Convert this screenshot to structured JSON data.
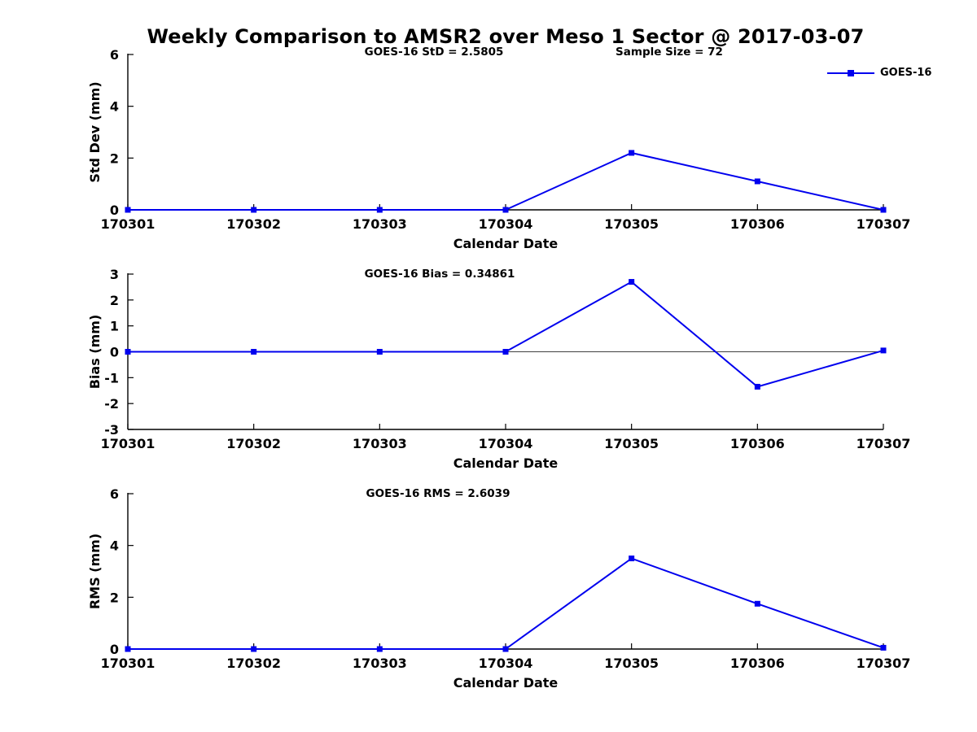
{
  "figure": {
    "title": "Weekly Comparison to AMSR2 over Meso 1 Sector @ 2017-03-07",
    "legend": {
      "label": "GOES-16",
      "color": "#0000ee"
    }
  },
  "chart_data": [
    {
      "type": "line",
      "title": "GOES-16 StD = 2.5805",
      "annotation": "Sample Size = 72",
      "xlabel": "Calendar Date",
      "ylabel": "Std Dev (mm)",
      "categories": [
        "170301",
        "170302",
        "170303",
        "170304",
        "170305",
        "170306",
        "170307"
      ],
      "series": [
        {
          "name": "GOES-16",
          "color": "#0000ee",
          "marker": "square",
          "values": [
            0,
            0,
            0,
            0,
            2.2,
            1.1,
            0
          ]
        }
      ],
      "ylim": [
        0,
        6
      ],
      "yticks": [
        0,
        2,
        4,
        6
      ],
      "zero_line": false,
      "grid": false,
      "legend_position": "northeast-outside"
    },
    {
      "type": "line",
      "title": "GOES-16 Bias  = 0.34861",
      "annotation": "",
      "xlabel": "Calendar Date",
      "ylabel": "Bias (mm)",
      "categories": [
        "170301",
        "170302",
        "170303",
        "170304",
        "170305",
        "170306",
        "170307"
      ],
      "series": [
        {
          "name": "GOES-16",
          "color": "#0000ee",
          "marker": "square",
          "values": [
            0,
            0,
            0,
            0,
            2.7,
            -1.35,
            0.05
          ]
        }
      ],
      "ylim": [
        -3,
        3
      ],
      "yticks": [
        -3,
        -2,
        -1,
        0,
        1,
        2,
        3
      ],
      "zero_line": true,
      "grid": false
    },
    {
      "type": "line",
      "title": "GOES-16 RMS = 2.6039",
      "annotation": "",
      "xlabel": "Calendar Date",
      "ylabel": "RMS (mm)",
      "categories": [
        "170301",
        "170302",
        "170303",
        "170304",
        "170305",
        "170306",
        "170307"
      ],
      "series": [
        {
          "name": "GOES-16",
          "color": "#0000ee",
          "marker": "square",
          "values": [
            0,
            0,
            0,
            0,
            3.5,
            1.75,
            0.05
          ]
        }
      ],
      "ylim": [
        0,
        6
      ],
      "yticks": [
        0,
        2,
        4,
        6
      ],
      "zero_line": false,
      "grid": false
    }
  ]
}
